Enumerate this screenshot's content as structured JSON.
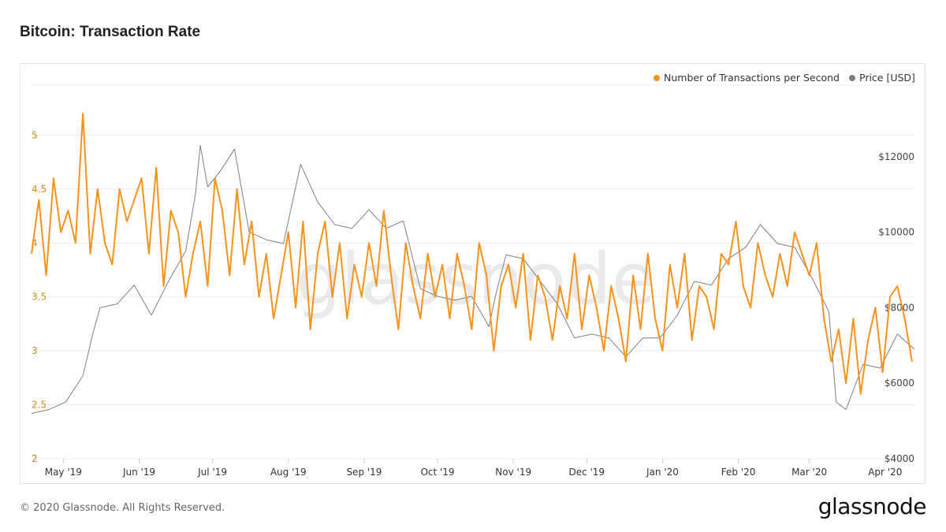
{
  "title": "Bitcoin: Transaction Rate",
  "footer": {
    "copyright": "© 2020 Glassnode. All Rights Reserved."
  },
  "brand": {
    "logo_text": "glassnode",
    "watermark": "glassnode"
  },
  "colors": {
    "transactions": "#f7931a",
    "price": "#7f7f7f",
    "grid": "#ececec",
    "left_axis": "#d68a1c",
    "right_axis": "#444444"
  },
  "chart_data": {
    "type": "line",
    "title": "Bitcoin: Transaction Rate",
    "legend_position": "top-right",
    "grid": true,
    "x_ticks": [
      "May '19",
      "Jun '19",
      "Jul '19",
      "Aug '19",
      "Sep '19",
      "Oct '19",
      "Nov '19",
      "Dec '19",
      "Jan '20",
      "Feb '20",
      "Mar '20",
      "Apr '20"
    ],
    "xlim": [
      "2019-04-18",
      "2020-04-13"
    ],
    "y_left": {
      "ticks": [
        "2",
        "2.5",
        "3",
        "3.5",
        "4",
        "4.5",
        "5"
      ],
      "lim": [
        2,
        5.5
      ]
    },
    "y_right": {
      "ticks": [
        "$4000",
        "$6000",
        "$8000",
        "$10000",
        "$12000"
      ],
      "lim": [
        4000,
        14000
      ]
    },
    "series": [
      {
        "name": "Number of Transactions per Second",
        "axis": "left",
        "x": [
          "2019-04-18",
          "2019-04-21",
          "2019-04-24",
          "2019-04-27",
          "2019-04-30",
          "2019-05-03",
          "2019-05-06",
          "2019-05-09",
          "2019-05-12",
          "2019-05-15",
          "2019-05-18",
          "2019-05-21",
          "2019-05-24",
          "2019-05-27",
          "2019-05-30",
          "2019-06-02",
          "2019-06-05",
          "2019-06-08",
          "2019-06-11",
          "2019-06-14",
          "2019-06-17",
          "2019-06-20",
          "2019-06-23",
          "2019-06-26",
          "2019-06-29",
          "2019-07-02",
          "2019-07-05",
          "2019-07-08",
          "2019-07-11",
          "2019-07-14",
          "2019-07-17",
          "2019-07-20",
          "2019-07-23",
          "2019-07-26",
          "2019-07-29",
          "2019-08-01",
          "2019-08-04",
          "2019-08-07",
          "2019-08-10",
          "2019-08-13",
          "2019-08-16",
          "2019-08-19",
          "2019-08-22",
          "2019-08-25",
          "2019-08-28",
          "2019-08-31",
          "2019-09-03",
          "2019-09-06",
          "2019-09-09",
          "2019-09-12",
          "2019-09-15",
          "2019-09-18",
          "2019-09-21",
          "2019-09-24",
          "2019-09-27",
          "2019-09-30",
          "2019-10-03",
          "2019-10-06",
          "2019-10-09",
          "2019-10-12",
          "2019-10-15",
          "2019-10-18",
          "2019-10-21",
          "2019-10-24",
          "2019-10-27",
          "2019-10-30",
          "2019-11-02",
          "2019-11-05",
          "2019-11-08",
          "2019-11-11",
          "2019-11-14",
          "2019-11-17",
          "2019-11-20",
          "2019-11-23",
          "2019-11-26",
          "2019-11-29",
          "2019-12-02",
          "2019-12-05",
          "2019-12-08",
          "2019-12-11",
          "2019-12-14",
          "2019-12-17",
          "2019-12-20",
          "2019-12-23",
          "2019-12-26",
          "2019-12-29",
          "2020-01-01",
          "2020-01-04",
          "2020-01-07",
          "2020-01-10",
          "2020-01-13",
          "2020-01-16",
          "2020-01-19",
          "2020-01-22",
          "2020-01-25",
          "2020-01-28",
          "2020-01-31",
          "2020-02-03",
          "2020-02-06",
          "2020-02-09",
          "2020-02-12",
          "2020-02-15",
          "2020-02-18",
          "2020-02-21",
          "2020-02-24",
          "2020-02-27",
          "2020-03-01",
          "2020-03-04",
          "2020-03-07",
          "2020-03-10",
          "2020-03-13",
          "2020-03-16",
          "2020-03-19",
          "2020-03-22",
          "2020-03-25",
          "2020-03-28",
          "2020-03-31",
          "2020-04-03",
          "2020-04-06",
          "2020-04-09",
          "2020-04-12"
        ],
        "values": [
          3.9,
          4.4,
          3.7,
          4.6,
          4.1,
          4.3,
          4.0,
          5.2,
          3.9,
          4.5,
          4.0,
          3.8,
          4.5,
          4.2,
          4.4,
          4.6,
          3.9,
          4.7,
          3.6,
          4.3,
          4.1,
          3.5,
          3.9,
          4.2,
          3.6,
          4.6,
          4.3,
          3.7,
          4.5,
          3.8,
          4.2,
          3.5,
          3.9,
          3.3,
          3.7,
          4.1,
          3.4,
          4.2,
          3.2,
          3.9,
          4.2,
          3.5,
          4.0,
          3.3,
          3.8,
          3.5,
          4.0,
          3.6,
          4.3,
          3.7,
          3.2,
          4.0,
          3.6,
          3.3,
          3.9,
          3.5,
          3.8,
          3.3,
          3.9,
          3.6,
          3.2,
          4.0,
          3.7,
          3.0,
          3.6,
          3.8,
          3.4,
          3.9,
          3.1,
          3.7,
          3.5,
          3.1,
          3.6,
          3.3,
          3.9,
          3.2,
          3.7,
          3.4,
          3.0,
          3.6,
          3.3,
          2.9,
          3.7,
          3.2,
          3.9,
          3.3,
          3.0,
          3.8,
          3.4,
          3.9,
          3.1,
          3.6,
          3.5,
          3.2,
          3.9,
          3.8,
          4.2,
          3.6,
          3.4,
          4.0,
          3.7,
          3.5,
          3.9,
          3.6,
          4.1,
          3.9,
          3.7,
          4.0,
          3.3,
          2.9,
          3.2,
          2.7,
          3.3,
          2.6,
          3.1,
          3.4,
          2.8,
          3.5,
          3.6,
          3.3,
          2.9
        ],
        "color": "#f7931a"
      },
      {
        "name": "Price [USD]",
        "axis": "right",
        "x": [
          "2019-04-18",
          "2019-04-25",
          "2019-05-02",
          "2019-05-09",
          "2019-05-13",
          "2019-05-16",
          "2019-05-23",
          "2019-05-30",
          "2019-06-06",
          "2019-06-13",
          "2019-06-20",
          "2019-06-24",
          "2019-06-26",
          "2019-06-29",
          "2019-07-04",
          "2019-07-10",
          "2019-07-16",
          "2019-07-23",
          "2019-07-30",
          "2019-08-06",
          "2019-08-13",
          "2019-08-20",
          "2019-08-27",
          "2019-09-03",
          "2019-09-10",
          "2019-09-17",
          "2019-09-24",
          "2019-10-01",
          "2019-10-08",
          "2019-10-15",
          "2019-10-22",
          "2019-10-25",
          "2019-10-29",
          "2019-11-05",
          "2019-11-12",
          "2019-11-19",
          "2019-11-26",
          "2019-12-03",
          "2019-12-10",
          "2019-12-17",
          "2019-12-24",
          "2019-12-31",
          "2020-01-07",
          "2020-01-14",
          "2020-01-21",
          "2020-01-28",
          "2020-02-04",
          "2020-02-10",
          "2020-02-17",
          "2020-02-24",
          "2020-03-02",
          "2020-03-09",
          "2020-03-12",
          "2020-03-16",
          "2020-03-23",
          "2020-03-30",
          "2020-04-06",
          "2020-04-13"
        ],
        "values": [
          5200,
          5300,
          5500,
          6200,
          7300,
          8000,
          8100,
          8600,
          7800,
          8700,
          9500,
          11000,
          12300,
          11200,
          11600,
          12200,
          10000,
          9800,
          9700,
          11800,
          10800,
          10200,
          10100,
          10600,
          10100,
          10300,
          8500,
          8300,
          8200,
          8300,
          7500,
          8400,
          9400,
          9300,
          8700,
          8100,
          7200,
          7300,
          7200,
          6700,
          7200,
          7200,
          7800,
          8700,
          8600,
          9300,
          9600,
          10200,
          9700,
          9600,
          8800,
          7900,
          5500,
          5300,
          6500,
          6400,
          7300,
          6900
        ],
        "color": "#7f7f7f"
      }
    ]
  }
}
